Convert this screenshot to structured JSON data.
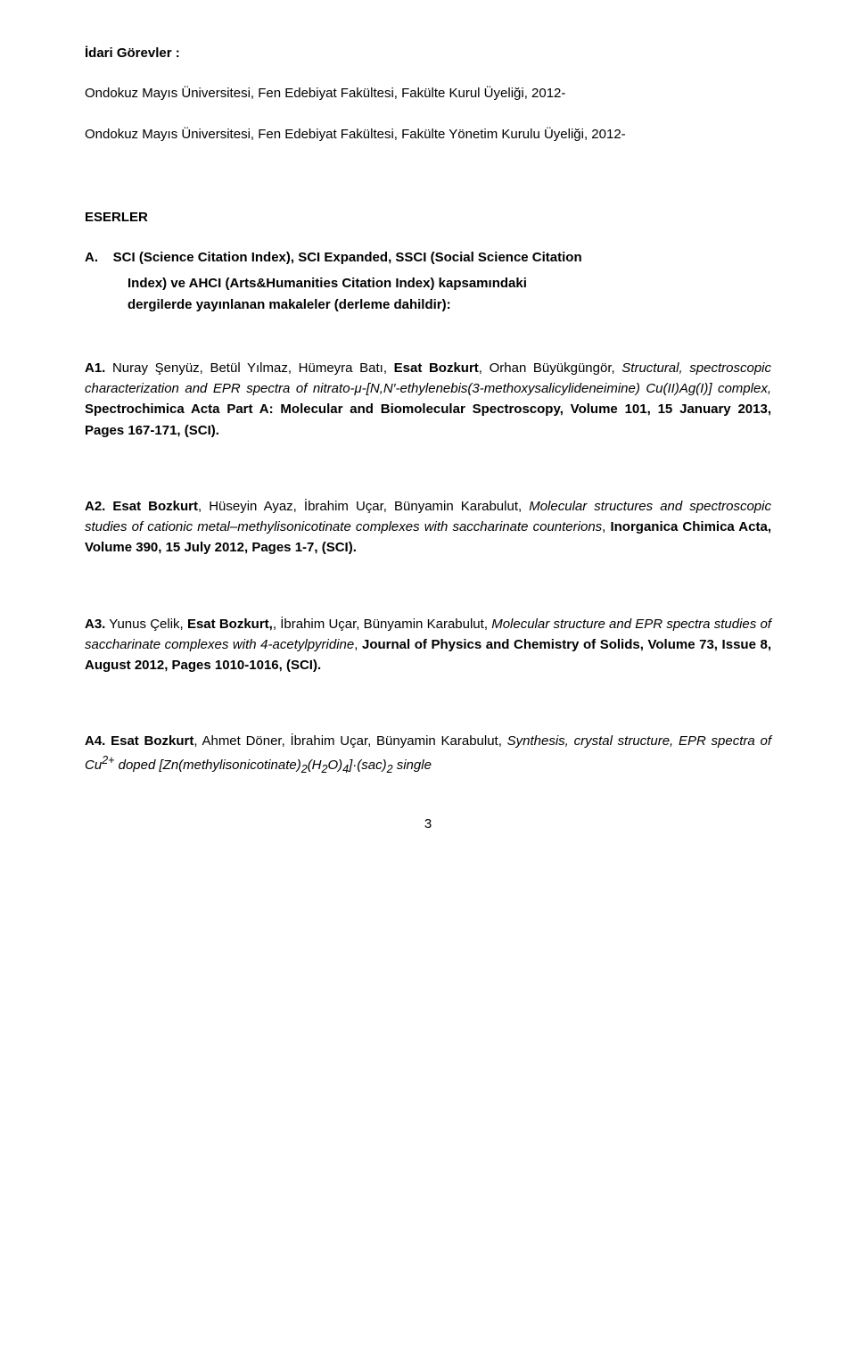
{
  "header": {
    "idari_gorevler_title": "İdari Görevler :",
    "line1": "Ondokuz Mayıs Üniversitesi, Fen Edebiyat Fakültesi, Fakülte Kurul Üyeliği, 2012-",
    "line2": "Ondokuz Mayıs Üniversitesi, Fen Edebiyat Fakültesi, Fakülte Yönetim Kurulu Üyeliği, 2012-"
  },
  "eserler_title": "ESERLER",
  "sci_section": {
    "marker": "A.",
    "line1": "SCI (Science Citation Index), SCI Expanded, SSCI (Social Science Citation",
    "line2": "Index) ve AHCI (Arts&Humanities Citation Index) kapsamındaki",
    "line3": "dergilerde yayınlanan makaleler (derleme dahildir):"
  },
  "a1": {
    "marker": "A1.",
    "authors_pre": " Nuray Şenyüz, Betül Yılmaz, Hümeyra Batı, ",
    "authors_bold": "Esat Bozkurt",
    "authors_post": ", Orhan Büyükgüngör, ",
    "italic_part": "Structural, spectroscopic characterization and EPR spectra of nitrato-μ-[N,N′-ethylenebis(3-methoxysalicylideneimine) Cu(II)Ag(I)] complex,",
    "bold_tail": " Spectrochimica Acta Part A: Molecular and Biomolecular Spectroscopy, Volume 101, 15 January 2013, Pages 167-171, (SCI)."
  },
  "a2": {
    "marker": "A2.",
    "authors_bold": " Esat Bozkurt",
    "authors_post": ", Hüseyin Ayaz, İbrahim Uçar, Bünyamin Karabulut, ",
    "italic_part": "Molecular structures and spectroscopic studies of cationic metal–methylisonicotinate complexes with saccharinate counterions",
    "post_italic": ", ",
    "bold_tail": "Inorganica Chimica Acta, Volume 390, 15 July 2012, Pages 1-7, (SCI)."
  },
  "a3": {
    "marker": "A3.",
    "authors_pre": " Yunus Çelik, ",
    "authors_bold": "Esat Bozkurt,",
    "authors_post": ", İbrahim Uçar, Bünyamin Karabulut,  ",
    "italic_part": "Molecular structure and EPR spectra studies of saccharinate complexes with 4-acetylpyridine",
    "post_italic": ", ",
    "bold_tail": "Journal of Physics and Chemistry of Solids, Volume 73, Issue 8, August 2012, Pages 1010-1016, (SCI)."
  },
  "a4": {
    "marker": "A4.",
    "authors_bold": " Esat Bozkurt",
    "authors_post": ", Ahmet Döner, İbrahim Uçar, Bünyamin Karabulut, ",
    "italic_pre": "Synthesis, crystal structure, EPR spectra of Cu",
    "sup": "2+",
    "italic_mid": " doped [Zn(methylisonicotinate)",
    "sub1": "2",
    "italic_mid2": "(H",
    "sub2": "2",
    "italic_mid3": "O)",
    "sub3": "4",
    "italic_mid4": "]·(sac)",
    "sub4": "2",
    "italic_tail": " single"
  },
  "pagenum": "3",
  "colors": {
    "text": "#000000",
    "background": "#ffffff"
  },
  "typography": {
    "body_fontsize": 15,
    "line_height": 1.55,
    "font_family": "Verdana"
  }
}
